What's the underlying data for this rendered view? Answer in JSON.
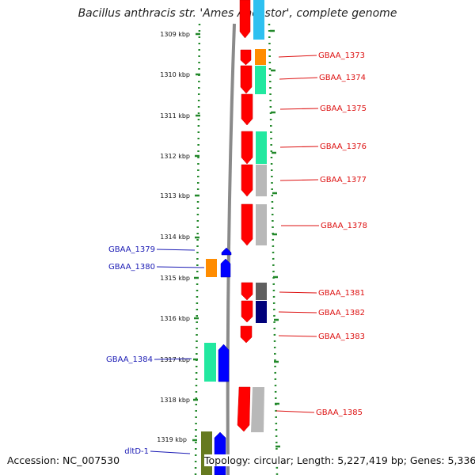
{
  "title": "Bacillus anthracis str. 'Ames Ancestor', complete genome",
  "accession": "Accession: NC_007530",
  "topology": "Topology: circular; Length: 5,227,419 bp; Genes: 5,336",
  "colors": {
    "ruler": "#22882a",
    "backbone": "#777777",
    "forward_label": "#dd1111",
    "reverse_label": "#1a1ab4",
    "blue": "#0000ff",
    "red": "#ff0000",
    "cyan": "#2ec0f0",
    "orange": "#ff8c00",
    "mint": "#22e8a0",
    "grey": "#b8b8b8",
    "dark_grey": "#606060",
    "navy": "#00007a",
    "olive": "#667a20"
  },
  "ticks": [
    "1309 kbp",
    "1310 kbp",
    "1311 kbp",
    "1312 kbp",
    "1313 kbp",
    "1314 kbp",
    "1315 kbp",
    "1316 kbp",
    "1317 kbp",
    "1318 kbp",
    "1319 kbp"
  ],
  "forward_genes": [
    "GBAA_1373",
    "GBAA_1374",
    "GBAA_1375",
    "GBAA_1376",
    "GBAA_1377",
    "GBAA_1378",
    "GBAA_1381",
    "GBAA_1382",
    "GBAA_1383",
    "GBAA_1385"
  ],
  "reverse_genes": [
    "GBAA_1379",
    "GBAA_1380",
    "GBAA_1384",
    "dltD-1"
  ]
}
